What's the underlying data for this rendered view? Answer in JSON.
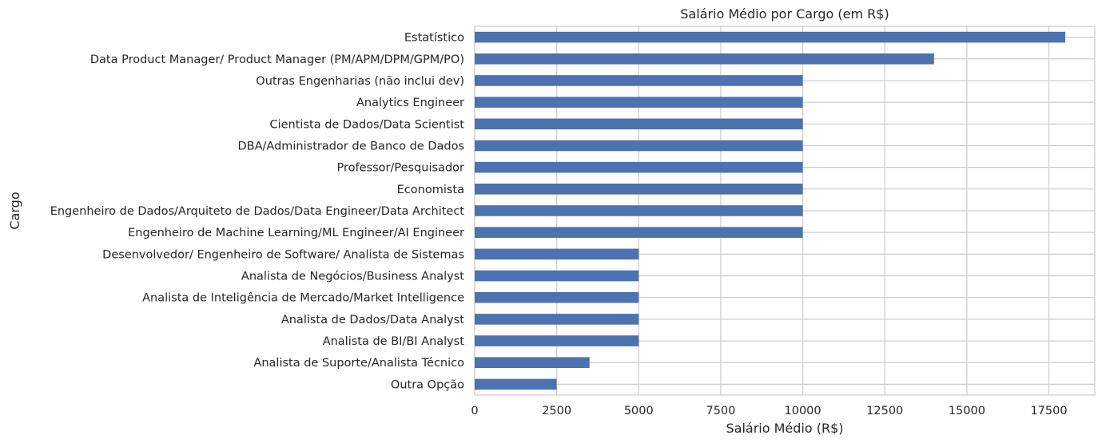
{
  "chart_data": {
    "type": "bar",
    "orientation": "horizontal",
    "title": "Salário Médio por Cargo (em R$)",
    "xlabel": "Salário Médio (R$)",
    "ylabel": "Cargo",
    "xlim": [
      0,
      18900
    ],
    "xticks": [
      0,
      2500,
      5000,
      7500,
      10000,
      12500,
      15000,
      17500
    ],
    "grid": true,
    "legend": "none",
    "bar_color": "#4c72b0",
    "categories": [
      "Estatístico",
      "Data Product Manager/ Product Manager (PM/APM/DPM/GPM/PO)",
      "Outras Engenharias (não inclui dev)",
      "Analytics Engineer",
      "Cientista de Dados/Data Scientist",
      "DBA/Administrador de Banco de Dados",
      "Professor/Pesquisador",
      "Economista",
      "Engenheiro de Dados/Arquiteto de Dados/Data Engineer/Data Architect",
      "Engenheiro de Machine Learning/ML Engineer/AI Engineer",
      "Desenvolvedor/ Engenheiro de Software/ Analista de Sistemas",
      "Analista de Negócios/Business Analyst",
      "Analista de Inteligência de Mercado/Market Intelligence",
      "Analista de Dados/Data Analyst",
      "Analista de BI/BI Analyst",
      "Analista de Suporte/Analista Técnico",
      "Outra Opção"
    ],
    "values": [
      18000,
      14000,
      10000,
      10000,
      10000,
      10000,
      10000,
      10000,
      10000,
      10000,
      5000,
      5000,
      5000,
      5000,
      5000,
      3500,
      2500
    ]
  }
}
